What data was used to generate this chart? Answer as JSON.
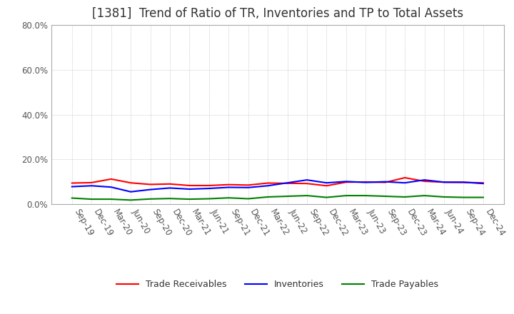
{
  "title": "[1381]  Trend of Ratio of TR, Inventories and TP to Total Assets",
  "ylim": [
    0,
    0.8
  ],
  "yticks": [
    0.0,
    0.2,
    0.4,
    0.6,
    0.8
  ],
  "ytick_labels": [
    "0.0%",
    "20.0%",
    "40.0%",
    "60.0%",
    "80.0%"
  ],
  "x_labels": [
    "Sep-19",
    "Dec-19",
    "Mar-20",
    "Jun-20",
    "Sep-20",
    "Dec-20",
    "Mar-21",
    "Jun-21",
    "Sep-21",
    "Dec-21",
    "Mar-22",
    "Jun-22",
    "Sep-22",
    "Dec-22",
    "Mar-23",
    "Jun-23",
    "Sep-23",
    "Dec-23",
    "Mar-24",
    "Jun-24",
    "Sep-24",
    "Dec-24"
  ],
  "trade_receivables": [
    0.094,
    0.096,
    0.112,
    0.095,
    0.088,
    0.09,
    0.083,
    0.083,
    0.087,
    0.085,
    0.094,
    0.093,
    0.092,
    0.082,
    0.098,
    0.099,
    0.097,
    0.118,
    0.102,
    0.098,
    0.097,
    0.095
  ],
  "inventories": [
    0.078,
    0.082,
    0.076,
    0.055,
    0.065,
    0.072,
    0.067,
    0.07,
    0.075,
    0.074,
    0.082,
    0.095,
    0.108,
    0.095,
    0.101,
    0.097,
    0.1,
    0.095,
    0.108,
    0.098,
    0.098,
    0.092
  ],
  "trade_payables": [
    0.027,
    0.022,
    0.022,
    0.018,
    0.023,
    0.025,
    0.022,
    0.024,
    0.028,
    0.024,
    0.032,
    0.035,
    0.038,
    0.03,
    0.038,
    0.038,
    0.035,
    0.032,
    0.038,
    0.032,
    0.03,
    0.03
  ],
  "colors": {
    "trade_receivables": "#FF0000",
    "inventories": "#0000FF",
    "trade_payables": "#008000"
  },
  "legend_labels": [
    "Trade Receivables",
    "Inventories",
    "Trade Payables"
  ],
  "background_color": "#FFFFFF",
  "grid_color": "#AAAAAA",
  "title_fontsize": 12,
  "tick_fontsize": 8.5
}
